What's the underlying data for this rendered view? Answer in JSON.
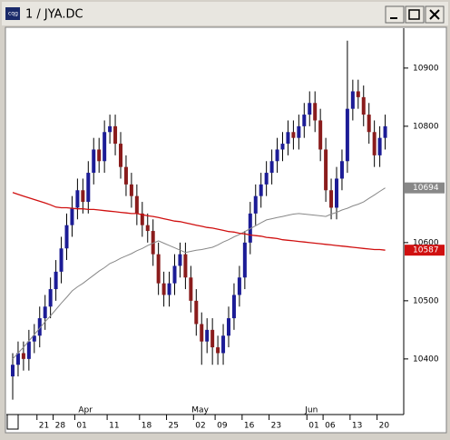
{
  "chart_data": {
    "type": "candlestick",
    "title": "1 / JYA.DC",
    "categories": [
      null,
      null,
      null,
      null,
      null,
      "21",
      null,
      null,
      "28",
      null,
      null,
      null,
      "01",
      null,
      null,
      null,
      null,
      null,
      "11",
      null,
      null,
      null,
      null,
      null,
      "18",
      null,
      null,
      null,
      null,
      "25",
      null,
      null,
      null,
      null,
      "02",
      null,
      null,
      null,
      "09",
      null,
      null,
      null,
      null,
      "16",
      null,
      null,
      null,
      null,
      "23",
      null,
      null,
      null,
      null,
      null,
      null,
      "01",
      null,
      null,
      "06",
      null,
      null,
      null,
      null,
      "13",
      null,
      null,
      null,
      null,
      "20",
      null
    ],
    "months": [
      null,
      null,
      null,
      null,
      null,
      null,
      null,
      null,
      null,
      null,
      null,
      null,
      null,
      "Apr",
      null,
      null,
      null,
      null,
      null,
      null,
      null,
      null,
      null,
      null,
      null,
      null,
      null,
      null,
      null,
      null,
      null,
      null,
      null,
      null,
      "May",
      null,
      null,
      null,
      null,
      null,
      null,
      null,
      null,
      null,
      null,
      null,
      null,
      null,
      null,
      null,
      null,
      null,
      null,
      null,
      null,
      "Jun",
      null,
      null,
      null,
      null,
      null,
      null,
      null,
      null,
      null,
      null,
      null,
      null,
      null,
      null
    ],
    "open": [
      10370,
      10390,
      10410,
      10400,
      10430,
      10440,
      10470,
      10490,
      10520,
      10550,
      10590,
      10630,
      10660,
      10690,
      10670,
      10720,
      10760,
      10740,
      10790,
      10800,
      10770,
      10730,
      10700,
      10680,
      10650,
      10630,
      10620,
      10580,
      10530,
      10510,
      10530,
      10560,
      10580,
      10540,
      10500,
      10460,
      10430,
      10450,
      10420,
      10410,
      10440,
      10470,
      10510,
      10540,
      10600,
      10650,
      10680,
      10700,
      10720,
      10740,
      10760,
      10770,
      10790,
      10780,
      10800,
      10820,
      10840,
      10810,
      10760,
      10690,
      10660,
      10710,
      10740,
      10830,
      10860,
      10850,
      10820,
      10790,
      10750,
      10780
    ],
    "high": [
      10410,
      10430,
      10430,
      10450,
      10460,
      10490,
      10510,
      10540,
      10570,
      10610,
      10650,
      10680,
      10710,
      10710,
      10740,
      10780,
      10780,
      10810,
      10820,
      10820,
      10790,
      10750,
      10720,
      10700,
      10670,
      10650,
      10640,
      10600,
      10550,
      10550,
      10580,
      10600,
      10600,
      10560,
      10520,
      10480,
      10470,
      10470,
      10440,
      10460,
      10490,
      10530,
      10560,
      10620,
      10670,
      10700,
      10720,
      10740,
      10760,
      10780,
      10790,
      10810,
      10810,
      10820,
      10840,
      10860,
      10860,
      10830,
      10780,
      10710,
      10730,
      10760,
      10947,
      10880,
      10880,
      10870,
      10840,
      10810,
      10800,
      10820
    ],
    "low": [
      10330,
      10370,
      10380,
      10380,
      10410,
      10420,
      10450,
      10470,
      10500,
      10530,
      10570,
      10610,
      10640,
      10650,
      10650,
      10700,
      10720,
      10720,
      10770,
      10750,
      10710,
      10680,
      10660,
      10630,
      10610,
      10600,
      10560,
      10510,
      10490,
      10490,
      10510,
      10540,
      10520,
      10480,
      10440,
      10390,
      10410,
      10390,
      10390,
      10390,
      10420,
      10450,
      10490,
      10520,
      10580,
      10630,
      10660,
      10680,
      10700,
      10720,
      10740,
      10750,
      10760,
      10760,
      10780,
      10800,
      10790,
      10740,
      10670,
      10640,
      10640,
      10690,
      10720,
      10810,
      10830,
      10800,
      10770,
      10730,
      10730,
      10760
    ],
    "close": [
      10390,
      10410,
      10400,
      10430,
      10440,
      10470,
      10490,
      10520,
      10550,
      10590,
      10630,
      10660,
      10690,
      10670,
      10720,
      10760,
      10740,
      10790,
      10800,
      10770,
      10730,
      10700,
      10680,
      10650,
      10630,
      10620,
      10580,
      10530,
      10510,
      10530,
      10560,
      10580,
      10540,
      10500,
      10460,
      10430,
      10450,
      10420,
      10410,
      10440,
      10470,
      10510,
      10540,
      10600,
      10650,
      10680,
      10700,
      10720,
      10740,
      10760,
      10770,
      10790,
      10780,
      10800,
      10820,
      10840,
      10810,
      10760,
      10690,
      10660,
      10710,
      10740,
      10830,
      10860,
      10850,
      10820,
      10790,
      10750,
      10780,
      10800
    ],
    "up_color": "#1c1c96",
    "down_color": "#8a1c1c",
    "series": [
      {
        "color": "#888888",
        "last_value": 10694,
        "values": [
          10400,
          10410,
          10420,
          10431,
          10442,
          10453,
          10464,
          10474,
          10485,
          10496,
          10506,
          10517,
          10524,
          10530,
          10537,
          10544,
          10551,
          10557,
          10564,
          10568,
          10573,
          10577,
          10581,
          10586,
          10590,
          10595,
          10599,
          10603,
          10599,
          10595,
          10591,
          10587,
          10583,
          10585,
          10587,
          10588,
          10590,
          10592,
          10596,
          10601,
          10605,
          10610,
          10614,
          10619,
          10624,
          10629,
          10634,
          10639,
          10641,
          10643,
          10645,
          10647,
          10649,
          10650,
          10649,
          10648,
          10647,
          10646,
          10645,
          10649,
          10652,
          10656,
          10659,
          10663,
          10666,
          10670,
          10676,
          10682,
          10688,
          10694
        ]
      },
      {
        "color": "#d01010",
        "last_value": 10587,
        "values": [
          10686,
          10683,
          10680,
          10677,
          10674,
          10671,
          10668,
          10665,
          10661,
          10660,
          10660,
          10659,
          10658,
          10658,
          10657,
          10657,
          10656,
          10655,
          10654,
          10653,
          10652,
          10651,
          10650,
          10650,
          10648,
          10646,
          10645,
          10643,
          10641,
          10639,
          10637,
          10636,
          10634,
          10632,
          10630,
          10628,
          10626,
          10625,
          10623,
          10621,
          10619,
          10618,
          10616,
          10615,
          10613,
          10612,
          10611,
          10609,
          10608,
          10607,
          10605,
          10604,
          10603,
          10602,
          10601,
          10600,
          10599,
          10598,
          10597,
          10596,
          10595,
          10594,
          10593,
          10592,
          10591,
          10590,
          10589,
          10588,
          10588,
          10587
        ]
      }
    ],
    "ylim": [
      10306,
      10967
    ],
    "yticks": [
      10400,
      10500,
      10600,
      10800,
      10900
    ]
  }
}
